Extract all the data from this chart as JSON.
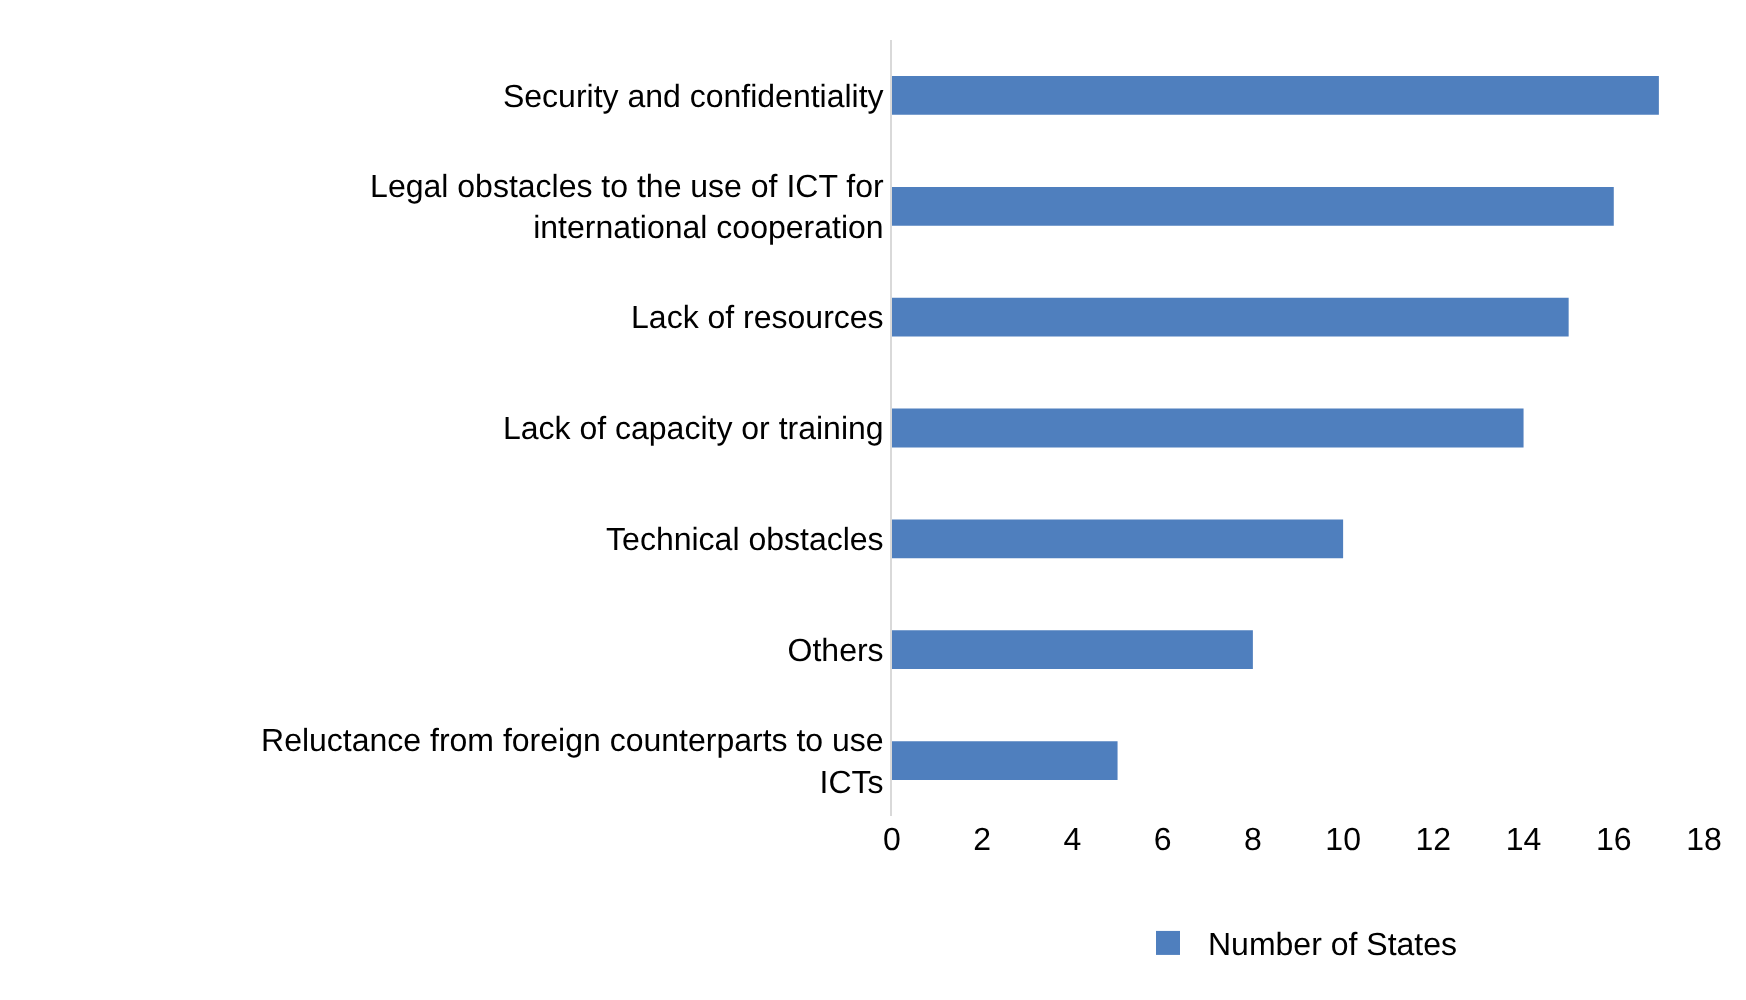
{
  "chart_data": {
    "type": "bar",
    "orientation": "horizontal",
    "categories": [
      "Security and confidentiality",
      "Legal obstacles to the use of ICT for international cooperation",
      "Lack of resources",
      "Lack of capacity or training",
      "Technical obstacles",
      "Others",
      "Reluctance from foreign counterparts to use ICTs"
    ],
    "series": [
      {
        "name": "Number of States",
        "color": "#4f7fbe",
        "values": [
          17,
          16,
          15,
          14,
          10,
          8,
          5
        ]
      }
    ],
    "xlim": [
      0,
      18
    ],
    "xticks": [
      0,
      2,
      4,
      6,
      8,
      10,
      12,
      14,
      16,
      18
    ],
    "grid": false,
    "legend": "bottom"
  }
}
